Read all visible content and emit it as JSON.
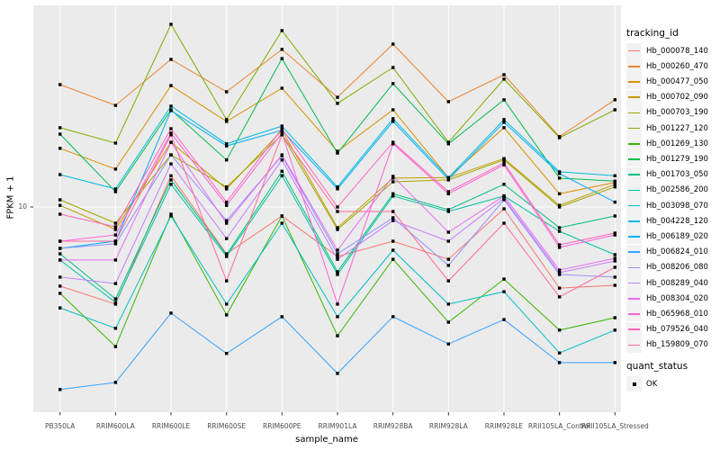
{
  "chart_data": {
    "type": "line",
    "xlabel": "sample_name",
    "ylabel": "FPKM + 1",
    "y_scale": "log10",
    "y_tick_labels": [
      "10"
    ],
    "y_tick_values": [
      10
    ],
    "ylim": [
      0.87,
      110
    ],
    "grid": "major-white-on-gray",
    "legend_position": "right",
    "point_shape": "filled-square",
    "point_color": "#000000",
    "categories": [
      "PB350LA",
      "RRIM600LA",
      "RRIM600LE",
      "RRIM600SE",
      "RRIM600PE",
      "RRIM901LA",
      "RRIM928BA",
      "RRIM928LA",
      "RRIM928LE",
      "RRII105LA_Control",
      "RRII105LA_Stressed"
    ],
    "series": [
      {
        "name": "Hb_000078_140",
        "color": "#F8766D",
        "values": [
          3.9,
          3.15,
          14.5,
          5.73,
          8.98,
          5.55,
          6.66,
          5.37,
          9.79,
          3.81,
          3.94
        ]
      },
      {
        "name": "Hb_000260_470",
        "color": "#EA8331",
        "values": [
          42.9,
          33.5,
          57.9,
          39.4,
          65.2,
          36.9,
          69.5,
          35.0,
          48.3,
          23.1,
          35.8
        ]
      },
      {
        "name": "Hb_000477_050",
        "color": "#D89000",
        "values": [
          20.1,
          15.7,
          42.4,
          27.7,
          41.1,
          19.4,
          31.8,
          14.2,
          25.7,
          11.7,
          13.4
        ]
      },
      {
        "name": "Hb_000702_090",
        "color": "#C09B00",
        "values": [
          10.2,
          7.65,
          21.6,
          12.4,
          24.9,
          7.82,
          14.1,
          14.2,
          17.8,
          10.2,
          13.1
        ]
      },
      {
        "name": "Hb_000703_190",
        "color": "#A3A500",
        "values": [
          10.9,
          8.25,
          18.6,
          12.7,
          23.6,
          7.65,
          13.5,
          13.8,
          17.5,
          10.0,
          12.7
        ]
      },
      {
        "name": "Hb_001227_120",
        "color": "#7CAE00",
        "values": [
          25.7,
          21.4,
          87.9,
          28.3,
          81.6,
          34.3,
          52.6,
          21.6,
          45.8,
          22.8,
          31.8
        ]
      },
      {
        "name": "Hb_001269_130",
        "color": "#39B600",
        "values": [
          3.58,
          1.9,
          9.18,
          2.77,
          8.98,
          2.16,
          5.37,
          2.54,
          4.24,
          2.31,
          2.68
        ]
      },
      {
        "name": "Hb_001279_190",
        "color": "#00BB4E",
        "values": [
          23.8,
          12.0,
          31.8,
          17.5,
          58.5,
          19.0,
          43.4,
          21.2,
          35.8,
          14.1,
          13.6
        ]
      },
      {
        "name": "Hb_001703_050",
        "color": "#00BF7D",
        "values": [
          5.73,
          3.35,
          13.8,
          5.67,
          15.3,
          4.63,
          11.7,
          9.68,
          13.1,
          7.82,
          8.98
        ]
      },
      {
        "name": "Hb_002586_200",
        "color": "#00C1A3",
        "values": [
          5.32,
          3.21,
          13.1,
          5.55,
          14.5,
          4.48,
          11.4,
          9.48,
          11.4,
          7.49,
          5.67
        ]
      },
      {
        "name": "Hb_003098_070",
        "color": "#00BFC4",
        "values": [
          3.01,
          2.36,
          8.98,
          3.15,
          8.25,
          2.71,
          5.98,
          3.15,
          3.65,
          1.76,
          2.31
        ]
      },
      {
        "name": "Hb_004228_120",
        "color": "#00BAE0",
        "values": [
          14.7,
          12.4,
          33.2,
          21.2,
          26.2,
          12.7,
          28.6,
          14.2,
          28.3,
          15.2,
          14.5
        ]
      },
      {
        "name": "Hb_006189_020",
        "color": "#00B0F6",
        "values": [
          6.11,
          6.66,
          31.5,
          20.7,
          24.9,
          12.4,
          27.7,
          13.9,
          27.4,
          14.9,
          10.6
        ]
      },
      {
        "name": "Hb_006824_010",
        "color": "#35A2FF",
        "values": [
          1.14,
          1.24,
          2.83,
          1.75,
          2.71,
          1.38,
          2.71,
          1.96,
          2.62,
          1.57,
          1.57
        ]
      },
      {
        "name": "Hb_008206_080",
        "color": "#9590FF",
        "values": [
          6.11,
          6.45,
          18.6,
          8.51,
          18.4,
          5.73,
          8.79,
          4.99,
          10.9,
          4.48,
          4.34
        ]
      },
      {
        "name": "Hb_008289_040",
        "color": "#C77CFF",
        "values": [
          4.34,
          4.02,
          16.7,
          6.87,
          17.5,
          5.37,
          8.51,
          6.66,
          11.1,
          4.58,
          5.26
        ]
      },
      {
        "name": "Hb_008304_020",
        "color": "#E76BF3",
        "values": [
          5.32,
          5.32,
          21.6,
          8.25,
          18.6,
          5.98,
          14.4,
          7.41,
          11.4,
          4.72,
          5.43
        ]
      },
      {
        "name": "Hb_065968_010",
        "color": "#FA62DB",
        "values": [
          6.66,
          7.17,
          24.1,
          10.2,
          24.1,
          3.15,
          21.2,
          11.7,
          16.5,
          6.18,
          7.17
        ]
      },
      {
        "name": "Hb_079526_040",
        "color": "#FF62BC",
        "values": [
          9.18,
          7.9,
          25.4,
          10.6,
          25.4,
          10.0,
          21.6,
          12.0,
          16.9,
          6.38,
          7.33
        ]
      },
      {
        "name": "Hb_159809_070",
        "color": "#FF6A98",
        "values": [
          6.66,
          6.66,
          23.6,
          4.15,
          23.6,
          9.48,
          9.48,
          4.15,
          8.25,
          3.43,
          4.88
        ]
      }
    ]
  },
  "legend": {
    "tracking_title": "tracking_id",
    "quant_title": "quant_status",
    "quant_items": [
      {
        "label": "OK",
        "shape": "filled-square",
        "color": "#000000"
      }
    ]
  },
  "style_colors": {
    "panel_background": "#EBEBEB",
    "gridline": "#FFFFFF",
    "tick_mark": "#333333",
    "axis_text": "#4D4D4D",
    "legend_key_background": "#F2F2F2"
  }
}
